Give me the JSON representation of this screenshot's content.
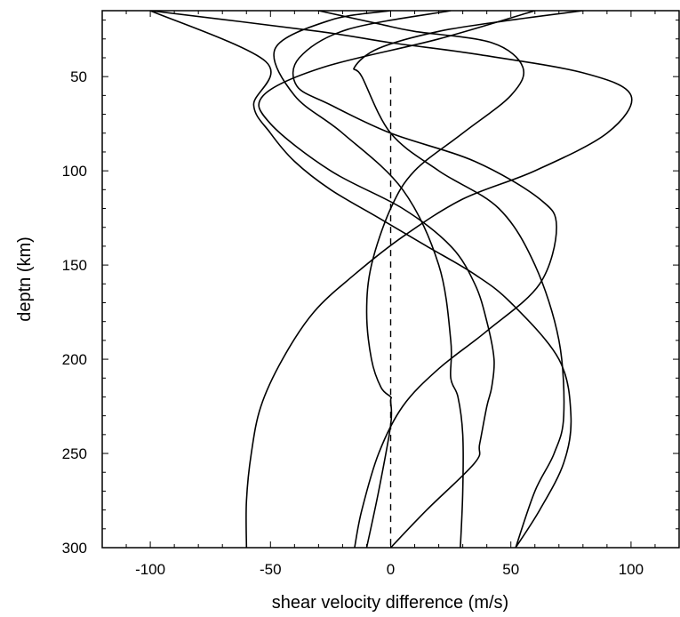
{
  "chart_data": {
    "type": "line",
    "xlabel": "shear velocity difference (m/s)",
    "ylabel": "deptn (km)",
    "xlim": [
      -120,
      120
    ],
    "ylim": [
      300,
      15
    ],
    "y_inverted": true,
    "xticks": [
      -100,
      -50,
      0,
      50,
      100
    ],
    "xtick_labels": [
      "-100",
      "-50",
      "0",
      "50",
      "100"
    ],
    "yticks": [
      50,
      100,
      150,
      200,
      250,
      300
    ],
    "ytick_labels": [
      "50",
      "100",
      "150",
      "200",
      "250",
      "300"
    ],
    "grid": false,
    "legend": "none",
    "reference_line": {
      "x": [
        0,
        0
      ],
      "depth": [
        50,
        300
      ],
      "style": "dashed"
    },
    "series": [
      {
        "x": [
          -100,
          -30,
          0,
          35,
          80,
          100,
          90,
          60,
          30,
          5,
          -15,
          -32,
          -45,
          -54,
          -58,
          -60,
          -60
        ],
        "depth": [
          15,
          26,
          32,
          38,
          48,
          60,
          80,
          100,
          115,
          135,
          155,
          175,
          200,
          225,
          250,
          275,
          300
        ]
      },
      {
        "x": [
          -30,
          -5,
          10,
          42,
          55,
          50,
          30,
          10,
          0,
          -8,
          -10,
          -8,
          -4,
          0,
          0,
          0,
          -5,
          -10
        ],
        "depth": [
          15,
          22,
          26,
          32,
          45,
          60,
          80,
          100,
          120,
          150,
          175,
          200,
          215,
          220,
          222,
          235,
          270,
          300
        ]
      },
      {
        "x": [
          0,
          -25,
          -48,
          -40,
          -20,
          5,
          20,
          25,
          25,
          28,
          30,
          30,
          29
        ],
        "depth": [
          15,
          20,
          35,
          60,
          80,
          110,
          150,
          190,
          210,
          220,
          240,
          270,
          300
        ]
      },
      {
        "x": [
          80,
          50,
          20,
          -5,
          -15,
          -12,
          0,
          20,
          45,
          60,
          70,
          72,
          68,
          60,
          52
        ],
        "depth": [
          15,
          20,
          26,
          35,
          45,
          50,
          80,
          100,
          120,
          150,
          190,
          230,
          250,
          270,
          300
        ]
      },
      {
        "x": [
          25,
          -18,
          -38,
          -39,
          -25,
          0,
          35,
          62,
          69,
          62,
          40,
          20,
          5,
          -5,
          -12,
          -15
        ],
        "depth": [
          15,
          25,
          40,
          55,
          65,
          80,
          95,
          115,
          130,
          160,
          185,
          205,
          225,
          250,
          280,
          300
        ]
      },
      {
        "x": [
          -100,
          -52,
          -57,
          -50,
          -40,
          -25,
          -5,
          15,
          35,
          50,
          70,
          75,
          72,
          62,
          52
        ],
        "depth": [
          15,
          42,
          65,
          80,
          95,
          110,
          125,
          140,
          155,
          170,
          200,
          230,
          255,
          280,
          300
        ]
      },
      {
        "x": [
          60,
          20,
          -28,
          -53,
          -50,
          -25,
          5,
          25,
          35,
          40,
          43,
          42,
          40,
          37,
          35,
          15,
          0
        ],
        "depth": [
          15,
          30,
          45,
          60,
          75,
          100,
          120,
          140,
          160,
          180,
          200,
          215,
          225,
          245,
          255,
          280,
          300
        ]
      }
    ]
  }
}
